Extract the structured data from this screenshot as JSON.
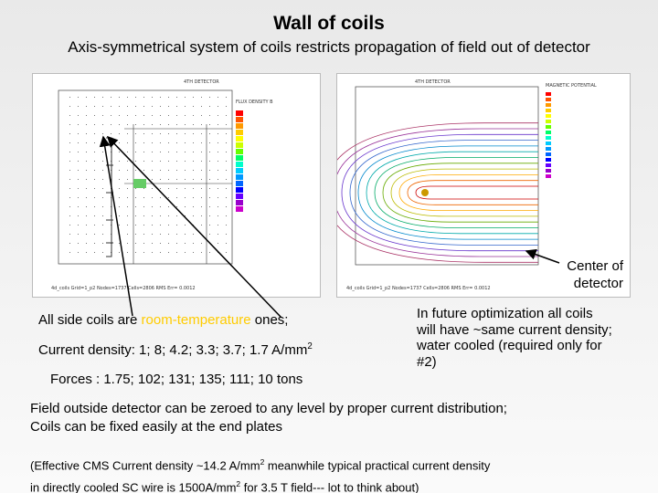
{
  "title": "Wall of coils",
  "subtitle": "Axis-symmetrical system of coils restricts propagation of field out of detector",
  "left_plot": {
    "header": "4TH DETECTOR",
    "legend_title": "FLUX DENSITY B",
    "footer": "4d_coils  Grid=1_p2  Nodes=1737 Cells=2806 RMS Err= 0.0012"
  },
  "right_plot": {
    "header": "4TH DETECTOR",
    "legend_title": "MAGNETIC POTENTIAL",
    "footer": "4d_coils  Grid=1_p2  Nodes=1737 Cells=2806 RMS Err= 0.0012"
  },
  "callout": [
    "Center of",
    "detector"
  ],
  "coils_line": {
    "before": "All side coils are ",
    "highlight": "room-temperature",
    "after": " ones;"
  },
  "current_line": {
    "text": "Current density: 1;  8;  4.2;  3.3;  3.7;  1.7 A/mm",
    "sup": "2"
  },
  "forces_line": "Forces : 1.75; 102; 131;  135; 111;  10 tons",
  "future_note": [
    "In future optimization all coils",
    "will have ~same current density;",
    "water cooled (required only for",
    "#2)"
  ],
  "field_note": [
    "Field outside detector can be zeroed to any level by proper current distribution;",
    "Coils can be fixed easily at the end plates"
  ],
  "footnote": {
    "line1_a": "(Effective CMS Current density ~14.2 A/mm",
    "line1_sup": "2",
    "line1_b": "  meanwhile typical practical current density",
    "line2_a": "in directly cooled SC wire is 1500A/mm",
    "line2_sup": "2",
    "line2_b": " for 3.5 T field--- lot to think about)"
  }
}
